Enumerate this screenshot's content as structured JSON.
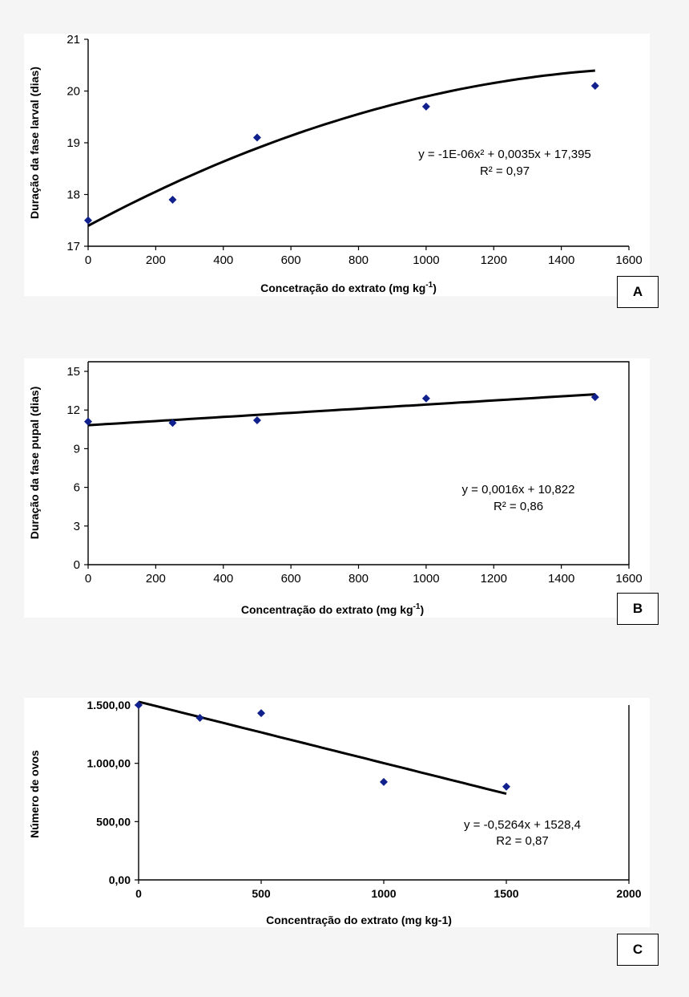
{
  "chart_data": [
    {
      "panel": "A",
      "type": "scatter",
      "xlabel": "Concetração do extrato (mg kg-1)",
      "xlabel_main": "Concetração do extrato (mg kg",
      "xlabel_sup": "-1",
      "xlabel_end": ")",
      "ylabel": "Duração da fase larval (dias)",
      "xlim": [
        0,
        1600
      ],
      "ylim": [
        17,
        21
      ],
      "xticks": [
        "0",
        "200",
        "400",
        "600",
        "800",
        "1000",
        "1200",
        "1400",
        "1600"
      ],
      "yticks": [
        "17",
        "18",
        "19",
        "20",
        "21"
      ],
      "x": [
        0,
        250,
        500,
        1000,
        1500
      ],
      "y": [
        17.5,
        17.9,
        19.1,
        19.7,
        20.1
      ],
      "fit": {
        "kind": "quadratic",
        "a": -1e-06,
        "b": 0.0035,
        "c": 17.395,
        "x_range": [
          0,
          1500
        ]
      },
      "equation": "y = -1E-06x² + 0,0035x + 17,395",
      "r2": "R² = 0,97"
    },
    {
      "panel": "B",
      "type": "scatter",
      "xlabel": "Concentração do extrato (mg kg-1)",
      "xlabel_main": "Concentração do extrato (mg kg",
      "xlabel_sup": "-1",
      "xlabel_end": ")",
      "ylabel": "Duração da fase pupal (dias)",
      "xlim": [
        0,
        1600
      ],
      "ylim": [
        0,
        15
      ],
      "xticks": [
        "0",
        "200",
        "400",
        "600",
        "800",
        "1000",
        "1200",
        "1400",
        "1600"
      ],
      "yticks": [
        "0",
        "3",
        "6",
        "9",
        "12",
        "15"
      ],
      "x": [
        0,
        250,
        500,
        1000,
        1500
      ],
      "y": [
        11.1,
        11.0,
        11.2,
        12.9,
        13.0
      ],
      "fit": {
        "kind": "linear",
        "m": 0.0016,
        "b": 10.822,
        "x_range": [
          0,
          1500
        ]
      },
      "equation": "y = 0,0016x + 10,822",
      "r2": "R² = 0,86"
    },
    {
      "panel": "C",
      "type": "scatter",
      "xlabel": "Concentração do extrato (mg kg-1)",
      "ylabel": "Número de ovos",
      "xlim": [
        0,
        2000
      ],
      "ylim": [
        0,
        1500
      ],
      "xticks": [
        "0",
        "500",
        "1000",
        "1500",
        "2000"
      ],
      "yticks": [
        "0,00",
        "500,00",
        "1.000,00",
        "1.500,00"
      ],
      "x": [
        0,
        250,
        500,
        1000,
        1500
      ],
      "y": [
        1500,
        1390,
        1430,
        840,
        800
      ],
      "fit": {
        "kind": "linear",
        "m": -0.5264,
        "b": 1528.4,
        "x_range": [
          0,
          1500
        ]
      },
      "equation": "y = -0,5264x + 1528,4",
      "r2": "R2 = 0,87"
    }
  ],
  "labels": {
    "a": "A",
    "b": "B",
    "c": "C"
  }
}
